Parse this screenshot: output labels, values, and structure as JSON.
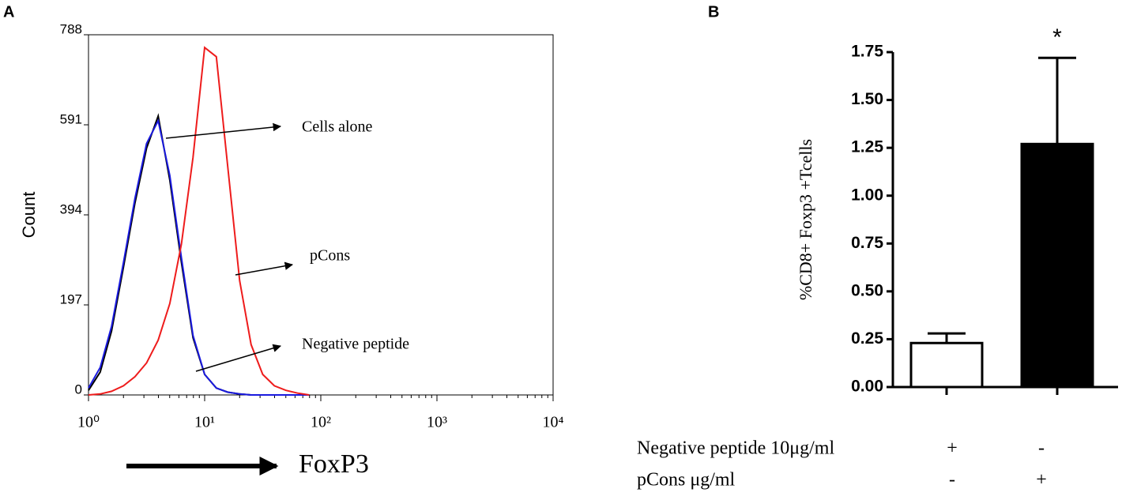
{
  "chart_data": [
    {
      "type": "line",
      "panel_label": "A",
      "ylabel": "Count",
      "xlabel": "FoxP3",
      "xscale": "log",
      "xlim": [
        1,
        10000
      ],
      "xticks": [
        {
          "value": 1,
          "label": "10⁰"
        },
        {
          "value": 10,
          "label": "10¹"
        },
        {
          "value": 100,
          "label": "10²"
        },
        {
          "value": 1000,
          "label": "10³"
        },
        {
          "value": 10000,
          "label": "10⁴"
        }
      ],
      "ylim": [
        0,
        788
      ],
      "yticks": [
        0,
        197,
        394,
        591,
        788
      ],
      "x": [
        1,
        1.26,
        1.58,
        2,
        2.51,
        3.16,
        3.98,
        5.01,
        6.31,
        7.94,
        10,
        12.6,
        15.8,
        20,
        25.1,
        31.6,
        39.8,
        50.1,
        63.1,
        79.4
      ],
      "series": [
        {
          "color": "#000000",
          "values": [
            10,
            50,
            140,
            280,
            420,
            540,
            610,
            470,
            290,
            125,
            45,
            15,
            6,
            2,
            0,
            0,
            0,
            0,
            0,
            0
          ]
        },
        {
          "color": "#1a1adf",
          "values": [
            15,
            60,
            150,
            290,
            430,
            550,
            600,
            480,
            300,
            130,
            45,
            15,
            6,
            2,
            0,
            0,
            0,
            0,
            0,
            0
          ]
        },
        {
          "color": "#ee1c1c",
          "values": [
            0,
            2,
            8,
            20,
            40,
            70,
            120,
            200,
            330,
            520,
            760,
            740,
            500,
            250,
            110,
            45,
            20,
            10,
            4,
            0
          ]
        }
      ],
      "annotations": [
        "Cells alone",
        "pCons",
        "Negative peptide"
      ]
    },
    {
      "type": "bar",
      "panel_label": "B",
      "ylabel": "%CD8+ Foxp3 +Tcells",
      "categories": [
        null,
        null
      ],
      "values": [
        0.23,
        1.27
      ],
      "errors": [
        0.05,
        0.45
      ],
      "colors": [
        "#ffffff",
        "#000000"
      ],
      "ylim": [
        0,
        1.75
      ],
      "yticks": [
        {
          "value": 0,
          "label": "0.00"
        },
        {
          "value": 0.25,
          "label": "0.25"
        },
        {
          "value": 0.5,
          "label": "0.50"
        },
        {
          "value": 0.75,
          "label": "0.75"
        },
        {
          "value": 1,
          "label": "1.00"
        },
        {
          "value": 1.25,
          "label": "1.25"
        },
        {
          "value": 1.5,
          "label": "1.50"
        },
        {
          "value": 1.75,
          "label": "1.75"
        }
      ],
      "significance": [
        "",
        "*"
      ],
      "conditions": [
        {
          "label": "Negative peptide 10μg/ml",
          "marks": [
            "+",
            "-"
          ]
        },
        {
          "label": "pCons μg/ml",
          "marks": [
            "-",
            "+"
          ]
        }
      ]
    }
  ]
}
